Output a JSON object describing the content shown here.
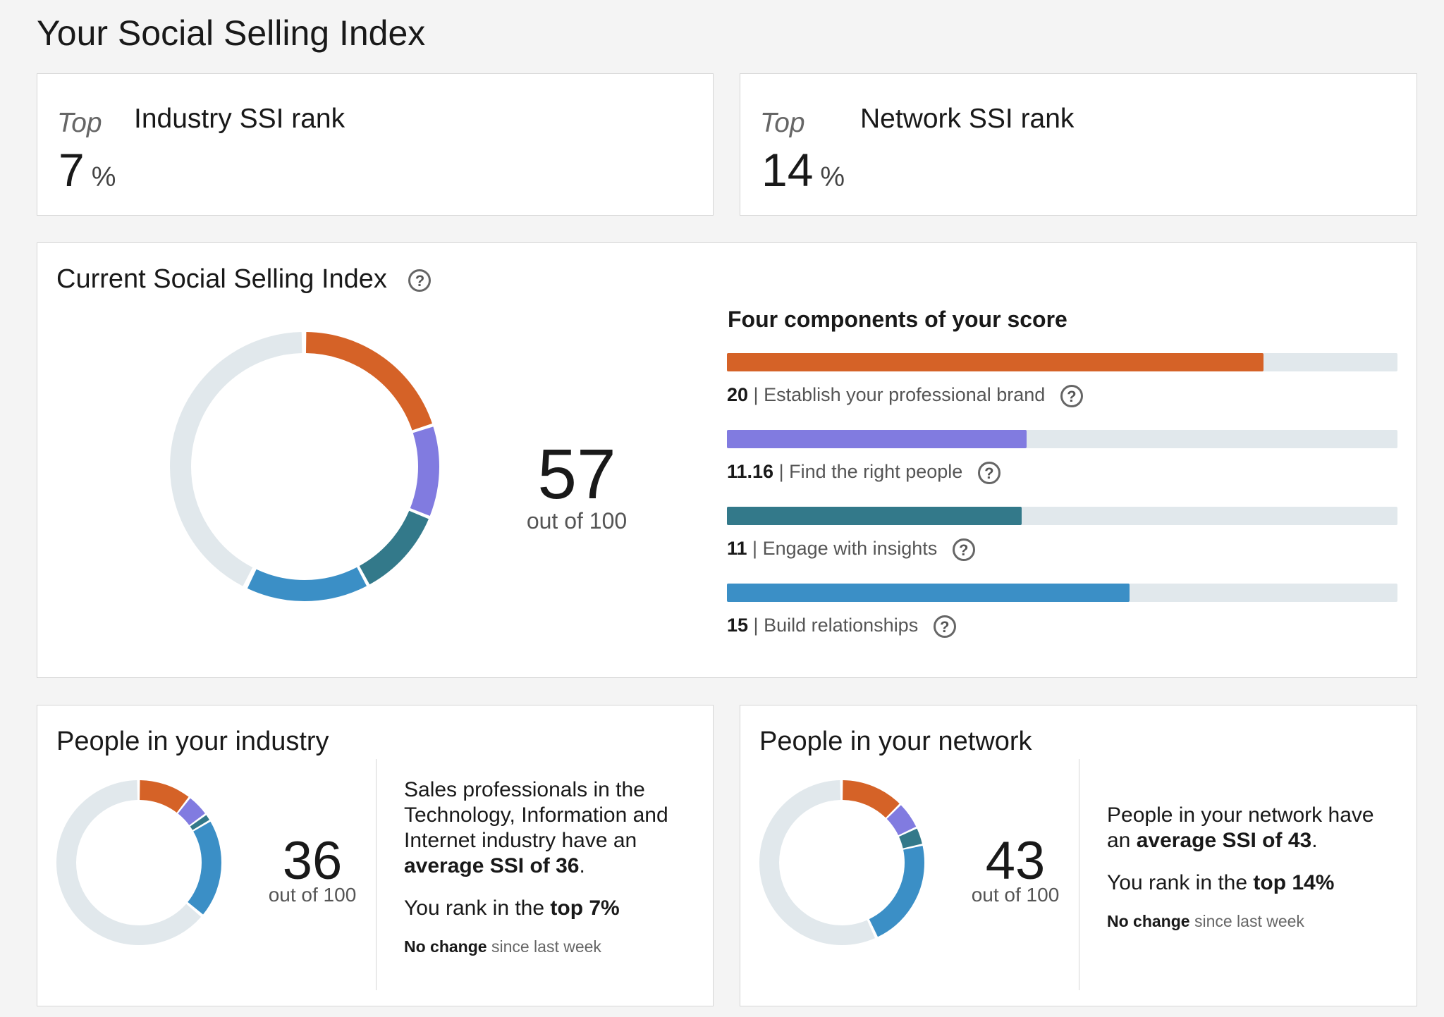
{
  "page_title": "Your Social Selling Index",
  "industry_rank": {
    "top_label": "Top",
    "title": "Industry SSI rank",
    "value": "7",
    "unit": "%"
  },
  "network_rank": {
    "top_label": "Top",
    "title": "Network SSI rank",
    "value": "14",
    "unit": "%"
  },
  "current": {
    "title": "Current Social Selling Index",
    "help_icon": "question-circle-icon",
    "score": "57",
    "out_of": "out of 100",
    "components_title": "Four components of your score",
    "components": [
      {
        "value": "20",
        "sep": " | ",
        "label": "Establish your professional brand",
        "max": 25,
        "color": "#d56227"
      },
      {
        "value": "11.16",
        "sep": " | ",
        "label": "Find the right people",
        "max": 25,
        "color": "#817be0"
      },
      {
        "value": "11",
        "sep": " | ",
        "label": "Engage with insights",
        "max": 25,
        "color": "#33798a"
      },
      {
        "value": "15",
        "sep": " | ",
        "label": "Build relationships",
        "max": 25,
        "color": "#3b8fc6"
      }
    ],
    "track_color": "#e1e8ec"
  },
  "industry": {
    "title": "People in your industry",
    "score": "36",
    "out_of": "out of 100",
    "segments": [
      10.5,
      4.5,
      1.5,
      19.5
    ],
    "desc_pre": "Sales professionals in the Technology, Information and Internet industry have an ",
    "desc_bold": "average SSI of 36",
    "desc_post": ".",
    "rank_pre": "You rank in the ",
    "rank_bold": "top 7%",
    "change_bold": "No change",
    "change_rest": " since last week"
  },
  "network": {
    "title": "People in your network",
    "score": "43",
    "out_of": "out of 100",
    "segments": [
      12.5,
      5.5,
      3.5,
      21.5
    ],
    "desc_pre": "People in your network have an ",
    "desc_bold": "average SSI of 43",
    "desc_post": ".",
    "rank_pre": "You rank in the ",
    "rank_bold": "top 14%",
    "change_bold": "No change",
    "change_rest": " since last week"
  }
}
